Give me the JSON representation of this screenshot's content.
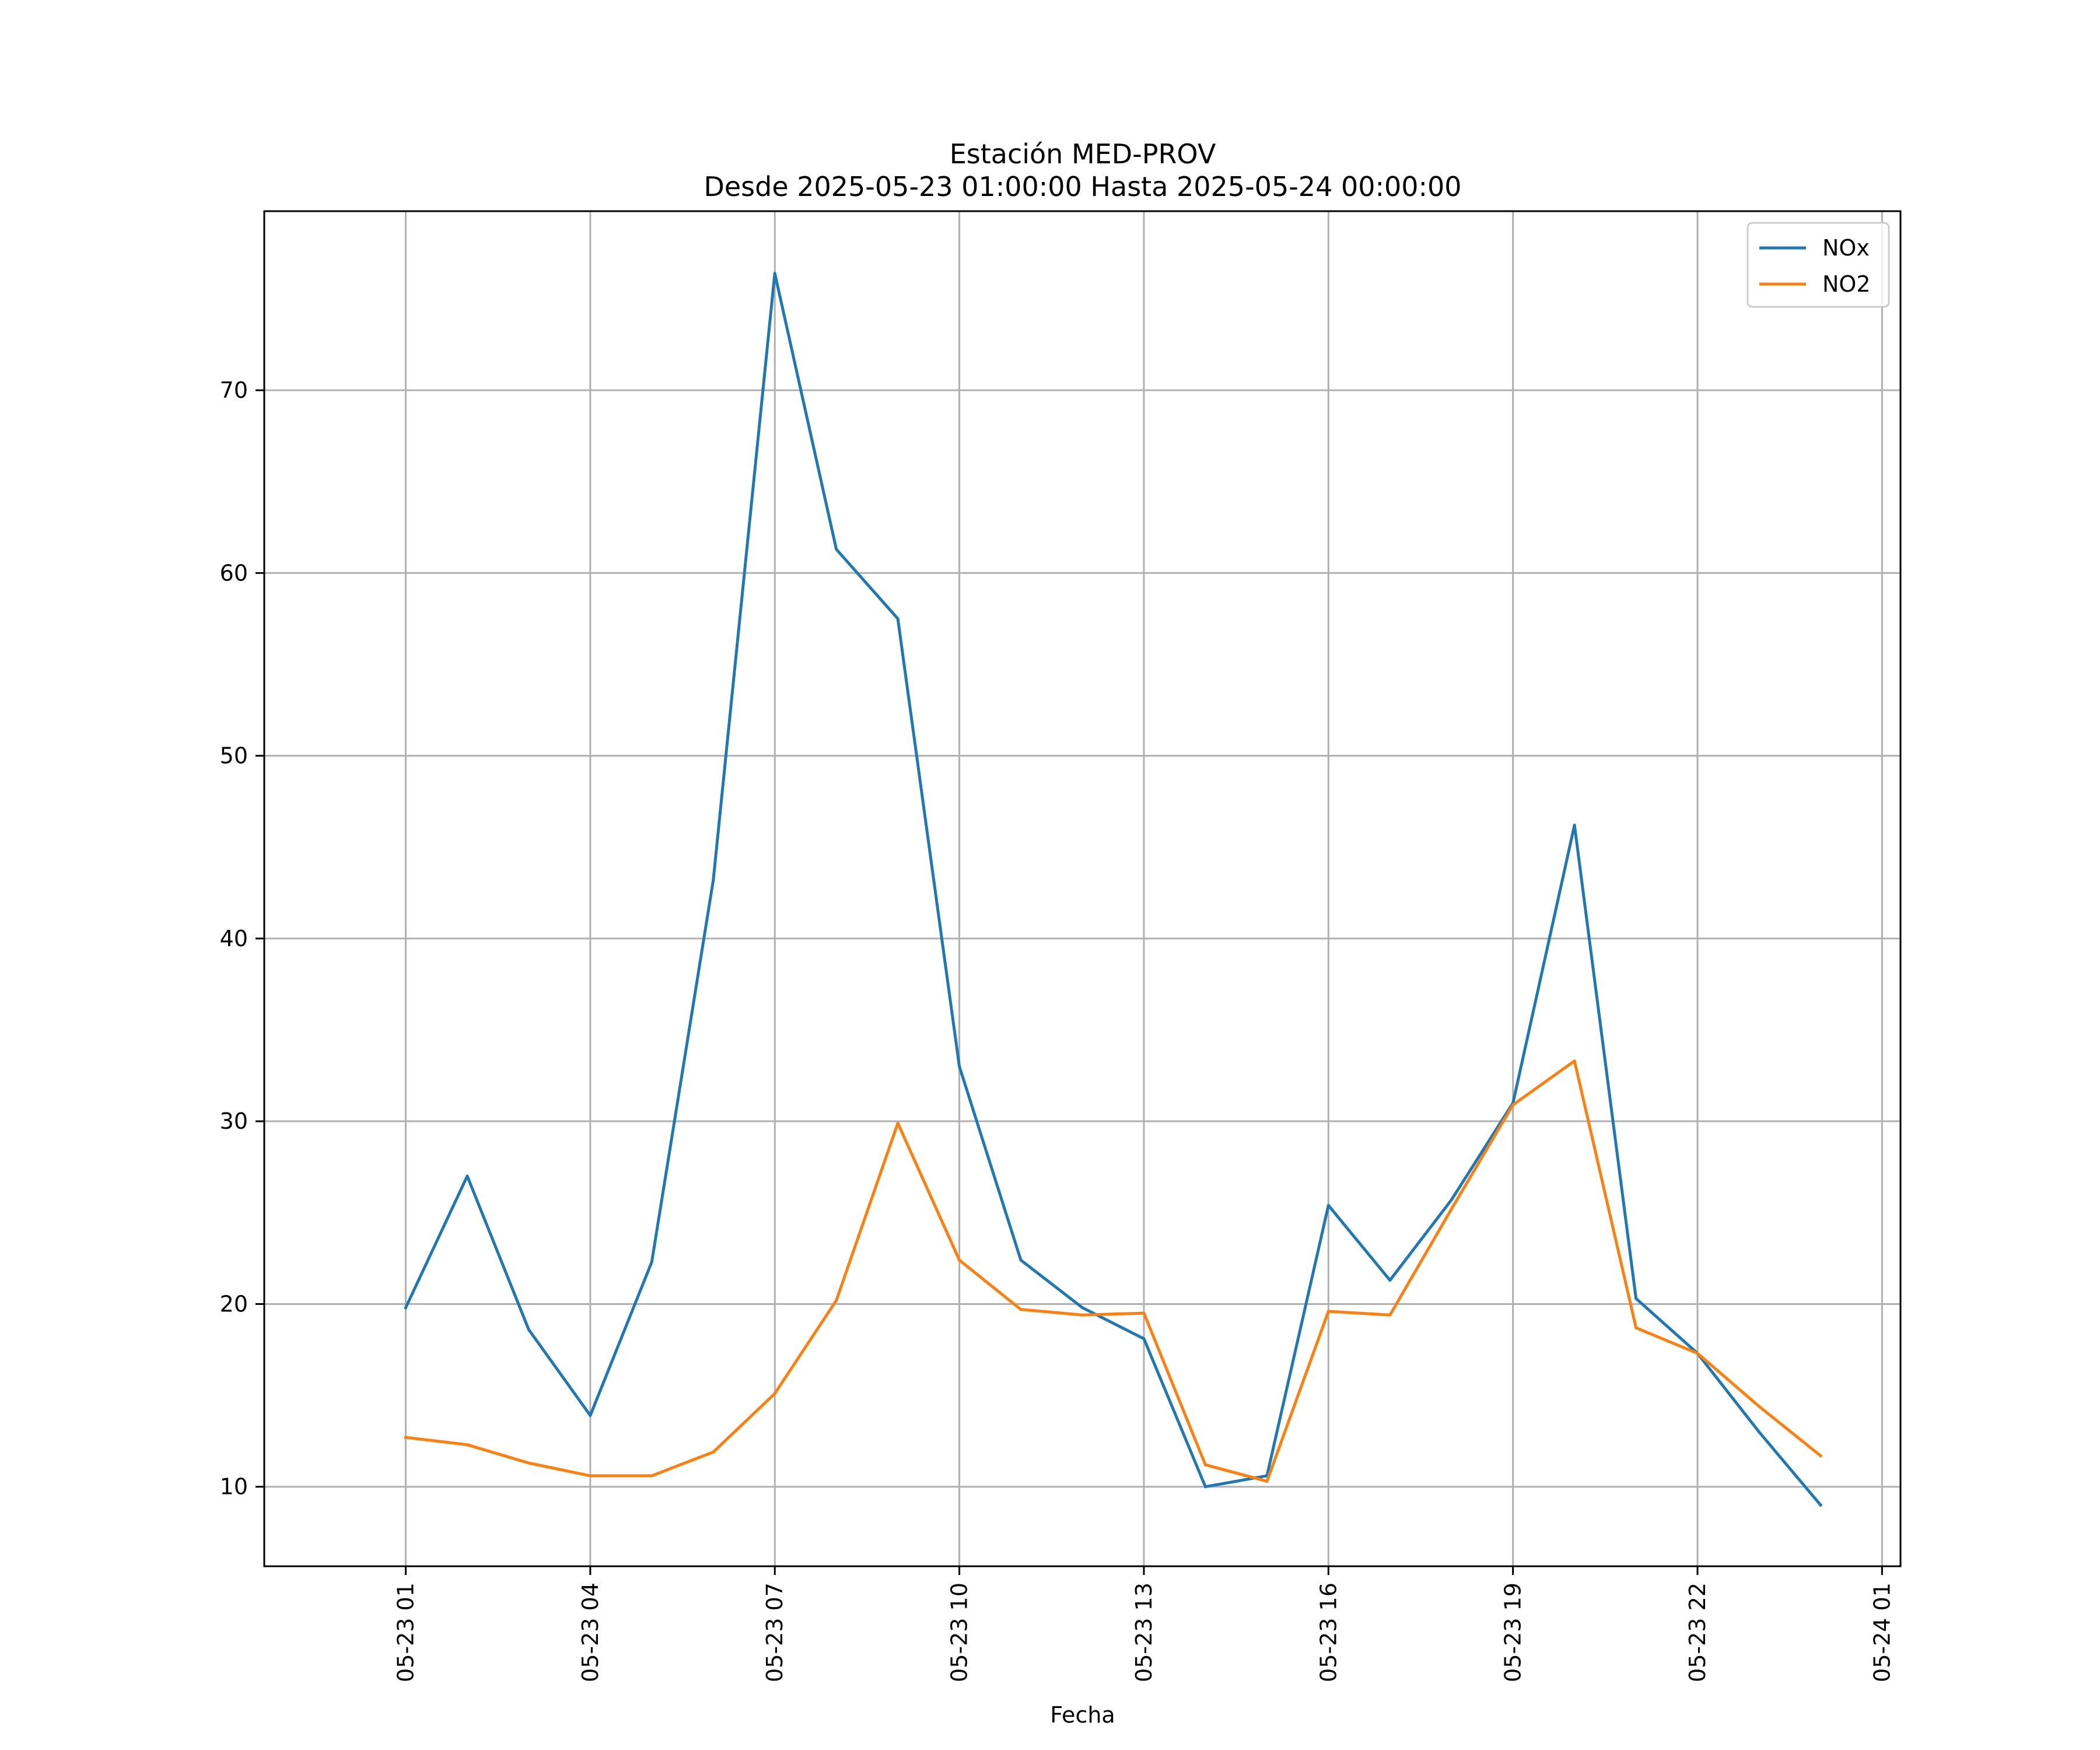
{
  "chart_data": {
    "type": "line",
    "title": "Estación MED-PROV",
    "subtitle": "Desde 2025-05-23 01:00:00 Hasta 2025-05-24 00:00:00",
    "xlabel": "Fecha",
    "ylabel": "",
    "x": [
      "2025-05-23 01:00",
      "2025-05-23 02:00",
      "2025-05-23 03:00",
      "2025-05-23 04:00",
      "2025-05-23 05:00",
      "2025-05-23 06:00",
      "2025-05-23 07:00",
      "2025-05-23 08:00",
      "2025-05-23 09:00",
      "2025-05-23 10:00",
      "2025-05-23 11:00",
      "2025-05-23 12:00",
      "2025-05-23 13:00",
      "2025-05-23 14:00",
      "2025-05-23 15:00",
      "2025-05-23 16:00",
      "2025-05-23 17:00",
      "2025-05-23 18:00",
      "2025-05-23 19:00",
      "2025-05-23 20:00",
      "2025-05-23 21:00",
      "2025-05-23 22:00",
      "2025-05-23 23:00",
      "2025-05-24 00:00"
    ],
    "xlim": [
      "2025-05-22 22:42",
      "2025-05-24 01:18"
    ],
    "xticks": [
      "2025-05-23 01:00",
      "2025-05-23 04:00",
      "2025-05-23 07:00",
      "2025-05-23 10:00",
      "2025-05-23 13:00",
      "2025-05-23 16:00",
      "2025-05-23 19:00",
      "2025-05-23 22:00",
      "2025-05-24 01:00"
    ],
    "xtick_labels": [
      "05-23 01",
      "05-23 04",
      "05-23 07",
      "05-23 10",
      "05-23 13",
      "05-23 16",
      "05-23 19",
      "05-23 22",
      "05-24 01"
    ],
    "ylim": [
      5.65,
      79.8
    ],
    "yticks": [
      10,
      20,
      30,
      40,
      50,
      60,
      70
    ],
    "ytick_labels": [
      "10",
      "20",
      "30",
      "40",
      "50",
      "60",
      "70"
    ],
    "grid": true,
    "legend_position": "top-right",
    "series": [
      {
        "name": "NOx",
        "color": "#1f77b4",
        "values": [
          19.8,
          27.0,
          18.6,
          13.9,
          22.3,
          43.2,
          76.4,
          61.3,
          57.5,
          33.0,
          22.4,
          19.8,
          18.1,
          10.0,
          10.6,
          25.4,
          21.3,
          25.7,
          31.0,
          46.2,
          20.3,
          17.3,
          13.0,
          9.0
        ]
      },
      {
        "name": "NO2",
        "color": "#ff7f0e",
        "values": [
          12.7,
          12.3,
          11.3,
          10.6,
          10.6,
          11.9,
          15.1,
          20.2,
          29.9,
          22.4,
          19.7,
          19.4,
          19.5,
          11.2,
          10.3,
          19.6,
          19.4,
          25.2,
          30.9,
          33.3,
          18.7,
          17.3,
          14.4,
          11.7
        ]
      }
    ]
  }
}
